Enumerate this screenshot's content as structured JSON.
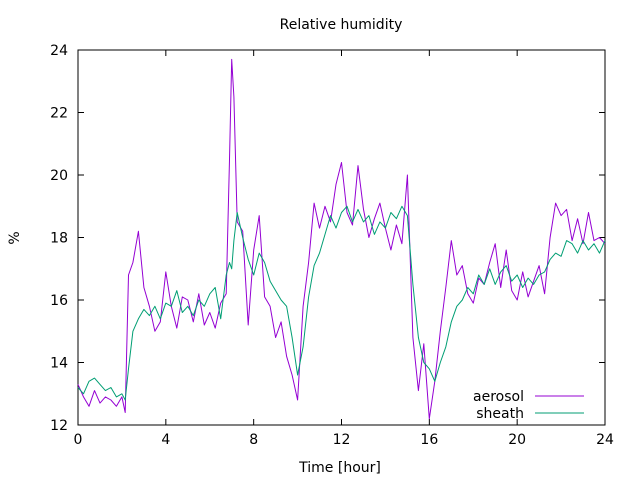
{
  "chart_data": {
    "type": "line",
    "title": "Relative humidity",
    "xlabel": "Time [hour]",
    "ylabel": "%",
    "xlim": [
      0,
      24
    ],
    "ylim": [
      12,
      24
    ],
    "xticks": [
      0,
      4,
      8,
      12,
      16,
      20,
      24
    ],
    "yticks": [
      12,
      14,
      16,
      18,
      20,
      22,
      24
    ],
    "grid": false,
    "legend_position": "bottom-right",
    "series": [
      {
        "name": "aerosol",
        "color": "#9400d3",
        "x": [
          0,
          0.25,
          0.5,
          0.75,
          1.0,
          1.25,
          1.5,
          1.75,
          2.0,
          2.15,
          2.3,
          2.5,
          2.75,
          3.0,
          3.25,
          3.5,
          3.75,
          4.0,
          4.25,
          4.5,
          4.75,
          5.0,
          5.25,
          5.5,
          5.75,
          6.0,
          6.25,
          6.5,
          6.75,
          6.9,
          7.0,
          7.1,
          7.25,
          7.5,
          7.75,
          8.0,
          8.25,
          8.5,
          8.75,
          9.0,
          9.25,
          9.5,
          9.75,
          10.0,
          10.25,
          10.5,
          10.75,
          11.0,
          11.25,
          11.5,
          11.75,
          12.0,
          12.25,
          12.5,
          12.75,
          13.0,
          13.25,
          13.5,
          13.75,
          14.0,
          14.25,
          14.5,
          14.75,
          15.0,
          15.25,
          15.5,
          15.75,
          16.0,
          16.25,
          16.5,
          16.75,
          17.0,
          17.25,
          17.5,
          17.75,
          18.0,
          18.25,
          18.5,
          18.75,
          19.0,
          19.25,
          19.5,
          19.75,
          20.0,
          20.25,
          20.5,
          20.75,
          21.0,
          21.25,
          21.5,
          21.75,
          22.0,
          22.25,
          22.5,
          22.75,
          23.0,
          23.25,
          23.5,
          23.75,
          24.0
        ],
        "y": [
          13.3,
          12.9,
          12.6,
          13.1,
          12.7,
          12.9,
          12.8,
          12.6,
          12.9,
          12.4,
          16.8,
          17.2,
          18.2,
          16.4,
          15.8,
          15.0,
          15.3,
          16.9,
          15.8,
          15.1,
          16.1,
          16.0,
          15.3,
          16.2,
          15.2,
          15.6,
          15.1,
          15.9,
          16.2,
          20.5,
          23.7,
          22.5,
          18.5,
          18.2,
          15.2,
          17.6,
          18.7,
          16.1,
          15.8,
          14.8,
          15.3,
          14.2,
          13.6,
          12.8,
          15.8,
          17.2,
          19.1,
          18.3,
          19.0,
          18.5,
          19.7,
          20.4,
          18.8,
          18.4,
          20.3,
          18.9,
          18.0,
          18.6,
          19.1,
          18.3,
          17.6,
          18.4,
          17.8,
          20.0,
          14.8,
          13.1,
          14.6,
          12.2,
          13.4,
          15.0,
          16.4,
          17.9,
          16.8,
          17.1,
          16.2,
          15.9,
          16.7,
          16.5,
          17.2,
          17.8,
          16.4,
          17.6,
          16.3,
          16.0,
          16.9,
          16.1,
          16.6,
          17.1,
          16.2,
          18.0,
          19.1,
          18.7,
          18.9,
          17.9,
          18.6,
          17.8,
          18.8,
          17.9,
          18.0,
          17.8
        ]
      },
      {
        "name": "sheath",
        "color": "#009e73",
        "x": [
          0,
          0.25,
          0.5,
          0.75,
          1.0,
          1.25,
          1.5,
          1.75,
          2.0,
          2.15,
          2.3,
          2.5,
          2.75,
          3.0,
          3.25,
          3.5,
          3.75,
          4.0,
          4.25,
          4.5,
          4.75,
          5.0,
          5.25,
          5.5,
          5.75,
          6.0,
          6.25,
          6.5,
          6.75,
          6.9,
          7.0,
          7.1,
          7.25,
          7.5,
          7.75,
          8.0,
          8.25,
          8.5,
          8.75,
          9.0,
          9.25,
          9.5,
          9.75,
          10.0,
          10.25,
          10.5,
          10.75,
          11.0,
          11.25,
          11.5,
          11.75,
          12.0,
          12.25,
          12.5,
          12.75,
          13.0,
          13.25,
          13.5,
          13.75,
          14.0,
          14.25,
          14.5,
          14.75,
          15.0,
          15.25,
          15.5,
          15.75,
          16.0,
          16.25,
          16.5,
          16.75,
          17.0,
          17.25,
          17.5,
          17.75,
          18.0,
          18.25,
          18.5,
          18.75,
          19.0,
          19.25,
          19.5,
          19.75,
          20.0,
          20.25,
          20.5,
          20.75,
          21.0,
          21.25,
          21.5,
          21.75,
          22.0,
          22.25,
          22.5,
          22.75,
          23.0,
          23.25,
          23.5,
          23.75,
          24.0
        ],
        "y": [
          13.2,
          13.0,
          13.4,
          13.5,
          13.3,
          13.1,
          13.2,
          12.9,
          13.0,
          12.8,
          13.8,
          15.0,
          15.4,
          15.7,
          15.5,
          15.8,
          15.4,
          15.9,
          15.8,
          16.3,
          15.6,
          15.8,
          15.5,
          16.0,
          15.8,
          16.2,
          16.4,
          15.4,
          16.8,
          17.2,
          17.0,
          17.9,
          18.8,
          18.0,
          17.3,
          16.8,
          17.5,
          17.2,
          16.6,
          16.3,
          16.0,
          15.8,
          14.8,
          13.6,
          14.5,
          16.1,
          17.1,
          17.5,
          18.1,
          18.7,
          18.3,
          18.8,
          19.0,
          18.5,
          18.9,
          18.5,
          18.7,
          18.1,
          18.5,
          18.3,
          18.8,
          18.6,
          19.0,
          18.7,
          16.5,
          14.8,
          14.0,
          13.8,
          13.4,
          14.0,
          14.5,
          15.3,
          15.8,
          16.0,
          16.4,
          16.2,
          16.8,
          16.5,
          17.0,
          16.5,
          16.9,
          17.1,
          16.6,
          16.8,
          16.4,
          16.7,
          16.5,
          16.8,
          16.9,
          17.3,
          17.5,
          17.4,
          17.9,
          17.8,
          17.5,
          17.9,
          17.6,
          17.8,
          17.5,
          17.9
        ]
      }
    ]
  }
}
